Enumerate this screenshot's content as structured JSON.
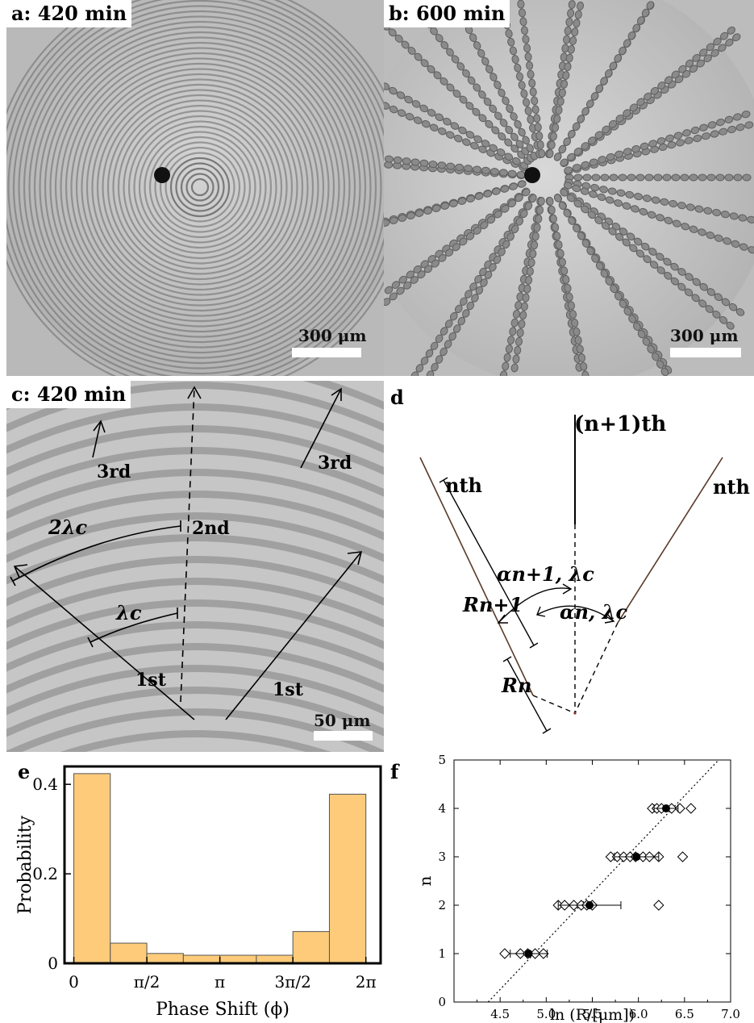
{
  "panels": {
    "a": {
      "label": "a: 420 min",
      "scale": "300 μm"
    },
    "b": {
      "label": "b: 600 min",
      "scale": "300 μm"
    },
    "c": {
      "label": "c: 420 min",
      "scale": "50 μm",
      "annotations": [
        "3rd",
        "3rd",
        "2λc",
        "2nd",
        "λc",
        "1st",
        "1st"
      ]
    },
    "d": {
      "label": "d",
      "annotations": [
        "(n+1)th",
        "nth",
        "nth",
        "αn+1, λc",
        "αn, λc",
        "Rn+1",
        "Rn"
      ]
    },
    "e": {
      "label": "e"
    },
    "f": {
      "label": "f"
    }
  },
  "chart_data": [
    {
      "type": "bar",
      "panel": "e",
      "xlabel": "Phase Shift (ϕ)",
      "ylabel": "Probability",
      "xtick_labels": [
        "0",
        "π/2",
        "π",
        "3π/2",
        "2π"
      ],
      "ytick_labels": [
        "0",
        "0.2",
        "0.4"
      ],
      "ylim": [
        0,
        0.44
      ],
      "xlim": [
        -0.2,
        6.6
      ],
      "bin_edges": [
        0,
        0.785,
        1.571,
        2.356,
        3.142,
        3.927,
        4.712,
        5.498,
        6.283
      ],
      "values": [
        0.424,
        0.045,
        0.022,
        0.018,
        0.018,
        0.018,
        0.071,
        0.378
      ],
      "bar_color": "#fdcb7a"
    },
    {
      "type": "scatter",
      "panel": "f",
      "xlabel": "ln (R/[μm])",
      "ylabel": "n",
      "xlim": [
        4.0,
        7.0
      ],
      "ylim": [
        0,
        5
      ],
      "xtick_labels": [
        "4.5",
        "5.0",
        "5.5",
        "6.0",
        "6.5",
        "7.0"
      ],
      "ytick_labels": [
        "0",
        "1",
        "2",
        "3",
        "4",
        "5"
      ],
      "raw_points": [
        {
          "n": 1,
          "x": [
            4.55,
            4.72,
            4.8,
            4.88,
            4.97
          ]
        },
        {
          "n": 2,
          "x": [
            5.13,
            5.2,
            5.3,
            5.38,
            5.44,
            5.5,
            6.22
          ]
        },
        {
          "n": 3,
          "x": [
            5.7,
            5.77,
            5.84,
            5.91,
            5.97,
            6.05,
            6.12,
            6.22,
            6.48
          ]
        },
        {
          "n": 4,
          "x": [
            6.15,
            6.2,
            6.25,
            6.36,
            6.45,
            6.57
          ]
        }
      ],
      "means": [
        {
          "n": 1,
          "x": 4.81,
          "err": 0.2
        },
        {
          "n": 2,
          "x": 5.47,
          "err": 0.34
        },
        {
          "n": 3,
          "x": 5.98,
          "err": 0.24
        },
        {
          "n": 4,
          "x": 6.3,
          "err": 0.13
        }
      ],
      "fit_line": {
        "x1": 4.37,
        "y1": 0,
        "x2": 6.87,
        "y2": 5
      }
    }
  ]
}
